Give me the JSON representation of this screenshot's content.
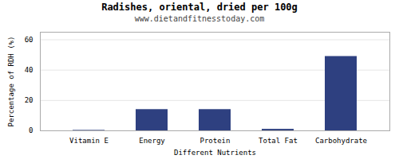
{
  "chart_data": {
    "type": "bar",
    "title": "Radishes, oriental, dried per 100g",
    "subtitle": "www.dietandfitnesstoday.com",
    "xlabel": "Different Nutrients",
    "ylabel": "Percentage of RDH (%)",
    "categories": [
      "Vitamin E",
      "Energy",
      "Protein",
      "Total Fat",
      "Carbohydrate"
    ],
    "values": [
      0.3,
      14,
      14,
      1,
      49
    ],
    "color": "#2e4080",
    "ylim": [
      0,
      65
    ],
    "yticks": [
      0,
      20,
      40,
      60
    ],
    "grid": true
  }
}
